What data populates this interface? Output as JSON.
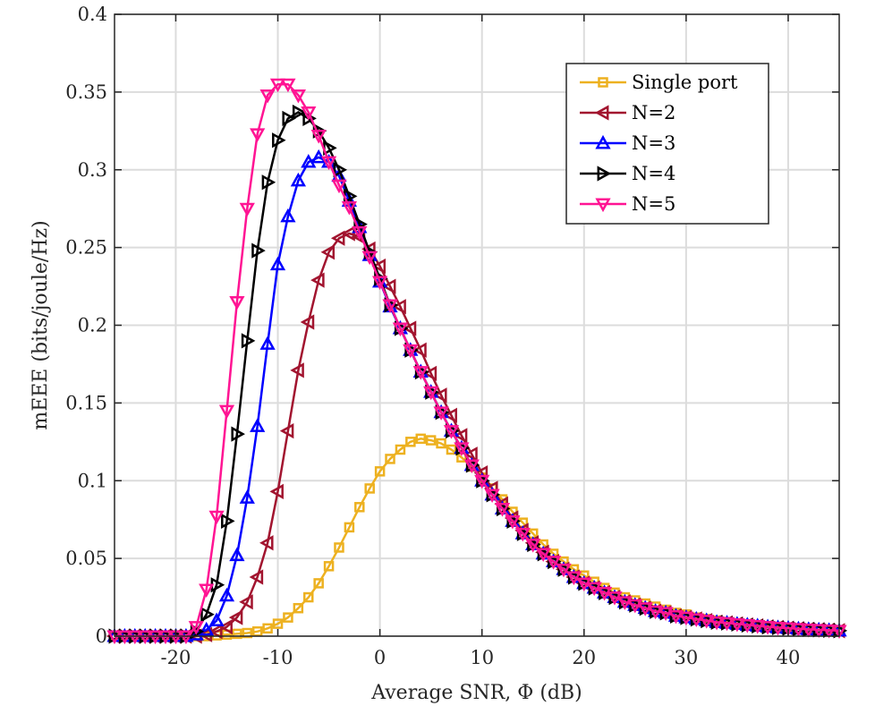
{
  "chart_data": {
    "type": "line",
    "title": "",
    "xlabel": "Average SNR, Φ (dB)",
    "ylabel": "mEEE (bits/joule/Hz)",
    "xlim": [
      -26,
      45
    ],
    "ylim": [
      0,
      0.4
    ],
    "grid": true,
    "legend_position": "top-right",
    "x_ticks": [
      -20,
      -10,
      0,
      10,
      20,
      30,
      40
    ],
    "x_tick_labels": [
      "-20",
      "-10",
      "0",
      "10",
      "20",
      "30",
      "40"
    ],
    "y_ticks": [
      0,
      0.05,
      0.1,
      0.15,
      0.2,
      0.25,
      0.3,
      0.35,
      0.4
    ],
    "y_tick_labels": [
      "0",
      "0.05",
      "0.1",
      "0.15",
      "0.2",
      "0.25",
      "0.3",
      "0.35",
      "0.4"
    ],
    "x": [
      -26,
      -25,
      -24,
      -23,
      -22,
      -21,
      -20,
      -19,
      -18,
      -17,
      -16,
      -15,
      -14,
      -13,
      -12,
      -11,
      -10,
      -9,
      -8,
      -7,
      -6,
      -5,
      -4,
      -3,
      -2,
      -1,
      0,
      1,
      2,
      3,
      4,
      5,
      6,
      7,
      8,
      9,
      10,
      11,
      12,
      13,
      14,
      15,
      16,
      17,
      18,
      19,
      20,
      21,
      22,
      23,
      24,
      25,
      26,
      27,
      28,
      29,
      30,
      31,
      32,
      33,
      34,
      35,
      36,
      37,
      38,
      39,
      40,
      41,
      42,
      43,
      44,
      45
    ],
    "series": [
      {
        "name": "Single port",
        "color": "#EDB120",
        "marker": "square",
        "values": [
          0,
          0,
          0,
          0,
          0,
          0,
          0,
          0,
          0,
          0,
          0.0005,
          0.001,
          0.0015,
          0.002,
          0.003,
          0.005,
          0.008,
          0.012,
          0.018,
          0.025,
          0.034,
          0.045,
          0.057,
          0.07,
          0.083,
          0.095,
          0.106,
          0.114,
          0.12,
          0.125,
          0.127,
          0.126,
          0.124,
          0.12,
          0.115,
          0.109,
          0.102,
          0.095,
          0.088,
          0.08,
          0.073,
          0.066,
          0.059,
          0.053,
          0.048,
          0.043,
          0.039,
          0.035,
          0.031,
          0.028,
          0.025,
          0.023,
          0.021,
          0.019,
          0.017,
          0.015,
          0.014,
          0.012,
          0.011,
          0.01,
          0.009,
          0.008,
          0.0075,
          0.007,
          0.0065,
          0.006,
          0.0055,
          0.005,
          0.0045,
          0.004,
          0.0038,
          0.0035
        ]
      },
      {
        "name": "N=2",
        "color": "#A2142F",
        "marker": "triangle-left",
        "values": [
          0,
          0,
          0,
          0,
          0,
          0,
          0,
          0,
          0,
          0.001,
          0.003,
          0.006,
          0.012,
          0.022,
          0.038,
          0.06,
          0.093,
          0.132,
          0.171,
          0.202,
          0.229,
          0.247,
          0.256,
          0.259,
          0.257,
          0.249,
          0.238,
          0.225,
          0.212,
          0.198,
          0.184,
          0.169,
          0.155,
          0.142,
          0.129,
          0.117,
          0.105,
          0.095,
          0.085,
          0.076,
          0.068,
          0.06,
          0.054,
          0.048,
          0.043,
          0.038,
          0.034,
          0.031,
          0.028,
          0.025,
          0.022,
          0.02,
          0.018,
          0.016,
          0.015,
          0.013,
          0.012,
          0.011,
          0.01,
          0.009,
          0.0085,
          0.0078,
          0.0072,
          0.0066,
          0.006,
          0.0055,
          0.0051,
          0.0047,
          0.0044,
          0.0041,
          0.0038,
          0.0035
        ]
      },
      {
        "name": "N=3",
        "color": "#0000FF",
        "marker": "triangle-up",
        "values": [
          0,
          0,
          0,
          0,
          0,
          0,
          0,
          0,
          0.001,
          0.004,
          0.01,
          0.026,
          0.052,
          0.089,
          0.135,
          0.188,
          0.239,
          0.27,
          0.293,
          0.305,
          0.308,
          0.305,
          0.296,
          0.28,
          0.263,
          0.245,
          0.228,
          0.212,
          0.198,
          0.184,
          0.17,
          0.157,
          0.144,
          0.132,
          0.121,
          0.11,
          0.1,
          0.091,
          0.082,
          0.074,
          0.066,
          0.059,
          0.053,
          0.048,
          0.043,
          0.038,
          0.034,
          0.031,
          0.028,
          0.025,
          0.022,
          0.02,
          0.018,
          0.016,
          0.015,
          0.013,
          0.012,
          0.011,
          0.01,
          0.009,
          0.0085,
          0.0078,
          0.0072,
          0.0066,
          0.006,
          0.0055,
          0.0051,
          0.0047,
          0.0044,
          0.0041,
          0.0038,
          0.0035
        ]
      },
      {
        "name": "N=4",
        "color": "#000000",
        "marker": "triangle-right",
        "values": [
          0,
          0,
          0,
          0,
          0,
          0,
          0,
          0,
          0.003,
          0.014,
          0.033,
          0.074,
          0.13,
          0.19,
          0.248,
          0.292,
          0.319,
          0.333,
          0.337,
          0.333,
          0.325,
          0.314,
          0.3,
          0.283,
          0.265,
          0.247,
          0.23,
          0.213,
          0.198,
          0.184,
          0.17,
          0.157,
          0.144,
          0.132,
          0.121,
          0.11,
          0.1,
          0.091,
          0.082,
          0.074,
          0.066,
          0.059,
          0.053,
          0.048,
          0.043,
          0.038,
          0.034,
          0.031,
          0.028,
          0.025,
          0.022,
          0.02,
          0.018,
          0.016,
          0.015,
          0.013,
          0.012,
          0.011,
          0.01,
          0.009,
          0.0085,
          0.0078,
          0.0072,
          0.0066,
          0.006,
          0.0055,
          0.0051,
          0.0047,
          0.0044,
          0.0041,
          0.0038,
          0.0035
        ]
      },
      {
        "name": "N=5",
        "color": "#FF1493",
        "marker": "triangle-down",
        "values": [
          0,
          0,
          0,
          0,
          0,
          0,
          0,
          0,
          0.006,
          0.03,
          0.077,
          0.145,
          0.215,
          0.275,
          0.323,
          0.348,
          0.355,
          0.355,
          0.348,
          0.337,
          0.322,
          0.305,
          0.29,
          0.276,
          0.26,
          0.244,
          0.228,
          0.213,
          0.198,
          0.184,
          0.17,
          0.157,
          0.144,
          0.132,
          0.121,
          0.11,
          0.1,
          0.091,
          0.082,
          0.074,
          0.066,
          0.059,
          0.053,
          0.048,
          0.043,
          0.038,
          0.034,
          0.031,
          0.028,
          0.025,
          0.022,
          0.02,
          0.018,
          0.016,
          0.015,
          0.013,
          0.012,
          0.011,
          0.01,
          0.009,
          0.0085,
          0.0078,
          0.0072,
          0.0066,
          0.006,
          0.0055,
          0.0051,
          0.0047,
          0.0044,
          0.0041,
          0.0038,
          0.0035
        ]
      }
    ]
  }
}
